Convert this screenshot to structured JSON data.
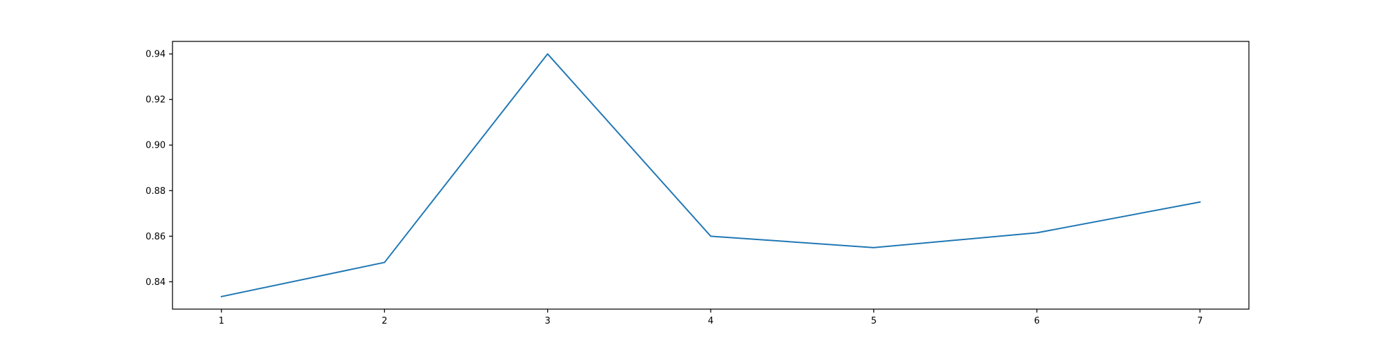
{
  "chart_data": {
    "type": "line",
    "title": "",
    "xlabel": "",
    "ylabel": "",
    "x": [
      1,
      2,
      3,
      4,
      5,
      6,
      7
    ],
    "series": [
      {
        "values": [
          0.8335,
          0.8485,
          0.94,
          0.86,
          0.855,
          0.8615,
          0.875
        ],
        "color": "#1f77b4"
      }
    ],
    "xticks": [
      "1",
      "2",
      "3",
      "4",
      "5",
      "6",
      "7"
    ],
    "yticks": [
      "0.84",
      "0.86",
      "0.88",
      "0.90",
      "0.92",
      "0.94"
    ],
    "xlim": [
      0.7,
      7.3
    ],
    "ylim": [
      0.828,
      0.9455
    ],
    "grid": false,
    "legend": "none"
  }
}
